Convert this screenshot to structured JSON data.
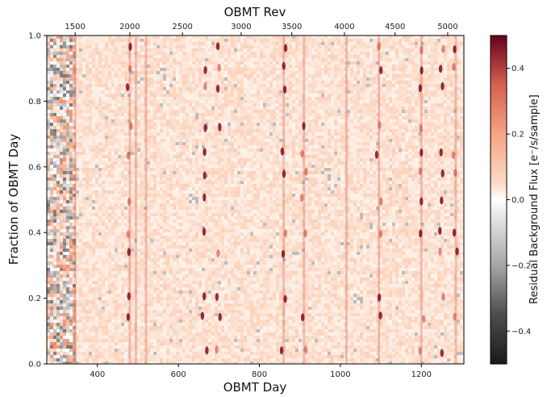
{
  "chart_data": {
    "type": "heatmap",
    "title": "",
    "xlabel": "OBMT Day",
    "ylabel": "Fraction of OBMT Day",
    "top_xlabel": "OBMT Rev",
    "colorbar_label": "Residual Background Flux [e⁻/s/sample]",
    "xlim": [
      275,
      1305
    ],
    "ylim": [
      0.0,
      1.0
    ],
    "x_ticks": [
      400,
      600,
      800,
      1000,
      1200
    ],
    "y_ticks": [
      0.0,
      0.2,
      0.4,
      0.6,
      0.8,
      1.0
    ],
    "top_ticks": [
      {
        "label": "1500",
        "day": 345
      },
      {
        "label": "2000",
        "day": 480
      },
      {
        "label": "2500",
        "day": 610
      },
      {
        "label": "3000",
        "day": 755
      },
      {
        "label": "3500",
        "day": 880
      },
      {
        "label": "4000",
        "day": 1010
      },
      {
        "label": "4500",
        "day": 1135
      },
      {
        "label": "5000",
        "day": 1265
      }
    ],
    "colorbar": {
      "vmin": -0.5,
      "vmax": 0.5,
      "ticks": [
        -0.4,
        -0.2,
        0.0,
        0.2,
        0.4
      ],
      "tick_labels": [
        "−0.4",
        "−0.2",
        "0.0",
        "0.2",
        "0.4"
      ],
      "colormap": "RdGy_r",
      "colors": {
        "low": "#1a1a1a",
        "mid": "#ffffff",
        "high": "#67001f"
      }
    },
    "features": {
      "vertical_streak_days": [
        345,
        480,
        495,
        520,
        860,
        910,
        1015,
        1095,
        1200,
        1285
      ],
      "blob_columns_days": [
        480,
        665,
        700,
        860,
        910,
        1095,
        1200,
        1250,
        1285
      ],
      "blob_y_fractions": [
        0.04,
        0.14,
        0.2,
        0.34,
        0.4,
        0.5,
        0.58,
        0.64,
        0.72,
        0.84,
        0.9,
        0.96
      ],
      "noisy_region_days": [
        275,
        340
      ],
      "background_level": 0.08
    }
  }
}
